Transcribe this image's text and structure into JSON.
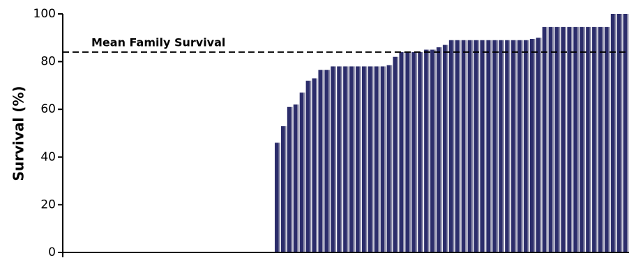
{
  "chart_data": {
    "type": "bar",
    "y_label": "Survival (%)",
    "categories": [
      null,
      null,
      null,
      null,
      null,
      null,
      null,
      null,
      null,
      null,
      null,
      null,
      null,
      null,
      null,
      null,
      null,
      null,
      null,
      null,
      null,
      null,
      null,
      null,
      null,
      null,
      null,
      null,
      null,
      null,
      null,
      null,
      null,
      null,
      null,
      null,
      null,
      null,
      null,
      null,
      null,
      null,
      null,
      null,
      null,
      null,
      null,
      null,
      null,
      null,
      null,
      null,
      null,
      null,
      null,
      null,
      null,
      null,
      null,
      null,
      null,
      null,
      null,
      null,
      null,
      null,
      null,
      null,
      null,
      null,
      null,
      null,
      null,
      null,
      null,
      null,
      null,
      null,
      null,
      null,
      null,
      null,
      null,
      null,
      null,
      null,
      null,
      null,
      null,
      null,
      null
    ],
    "values": [
      0,
      0,
      0,
      0,
      0,
      0,
      0,
      0,
      0,
      0,
      0,
      0,
      0,
      0,
      0,
      0,
      0,
      0,
      0,
      0,
      0,
      0,
      0,
      0,
      0,
      0,
      0,
      0,
      0,
      0,
      0,
      0,
      0,
      0,
      46,
      53,
      61,
      62,
      67,
      72,
      73,
      76.5,
      76.5,
      78,
      78,
      78,
      78,
      78,
      78,
      78,
      78,
      78,
      78.5,
      82,
      84,
      84,
      84,
      84,
      85,
      85,
      86,
      87,
      89,
      89,
      89,
      89,
      89,
      89,
      89,
      89,
      89,
      89,
      89,
      89,
      89,
      89.5,
      90,
      94.5,
      94.5,
      94.5,
      94.5,
      94.5,
      94.5,
      94.5,
      94.5,
      94.5,
      94.5,
      94.5,
      100,
      100,
      100
    ],
    "color": "#2c2d6b",
    "reference_line": {
      "value": 84,
      "label": "Mean Family Survival"
    },
    "ylim": [
      0,
      100
    ],
    "yticks": [
      0,
      20,
      40,
      60,
      80,
      100
    ],
    "grid": false
  }
}
